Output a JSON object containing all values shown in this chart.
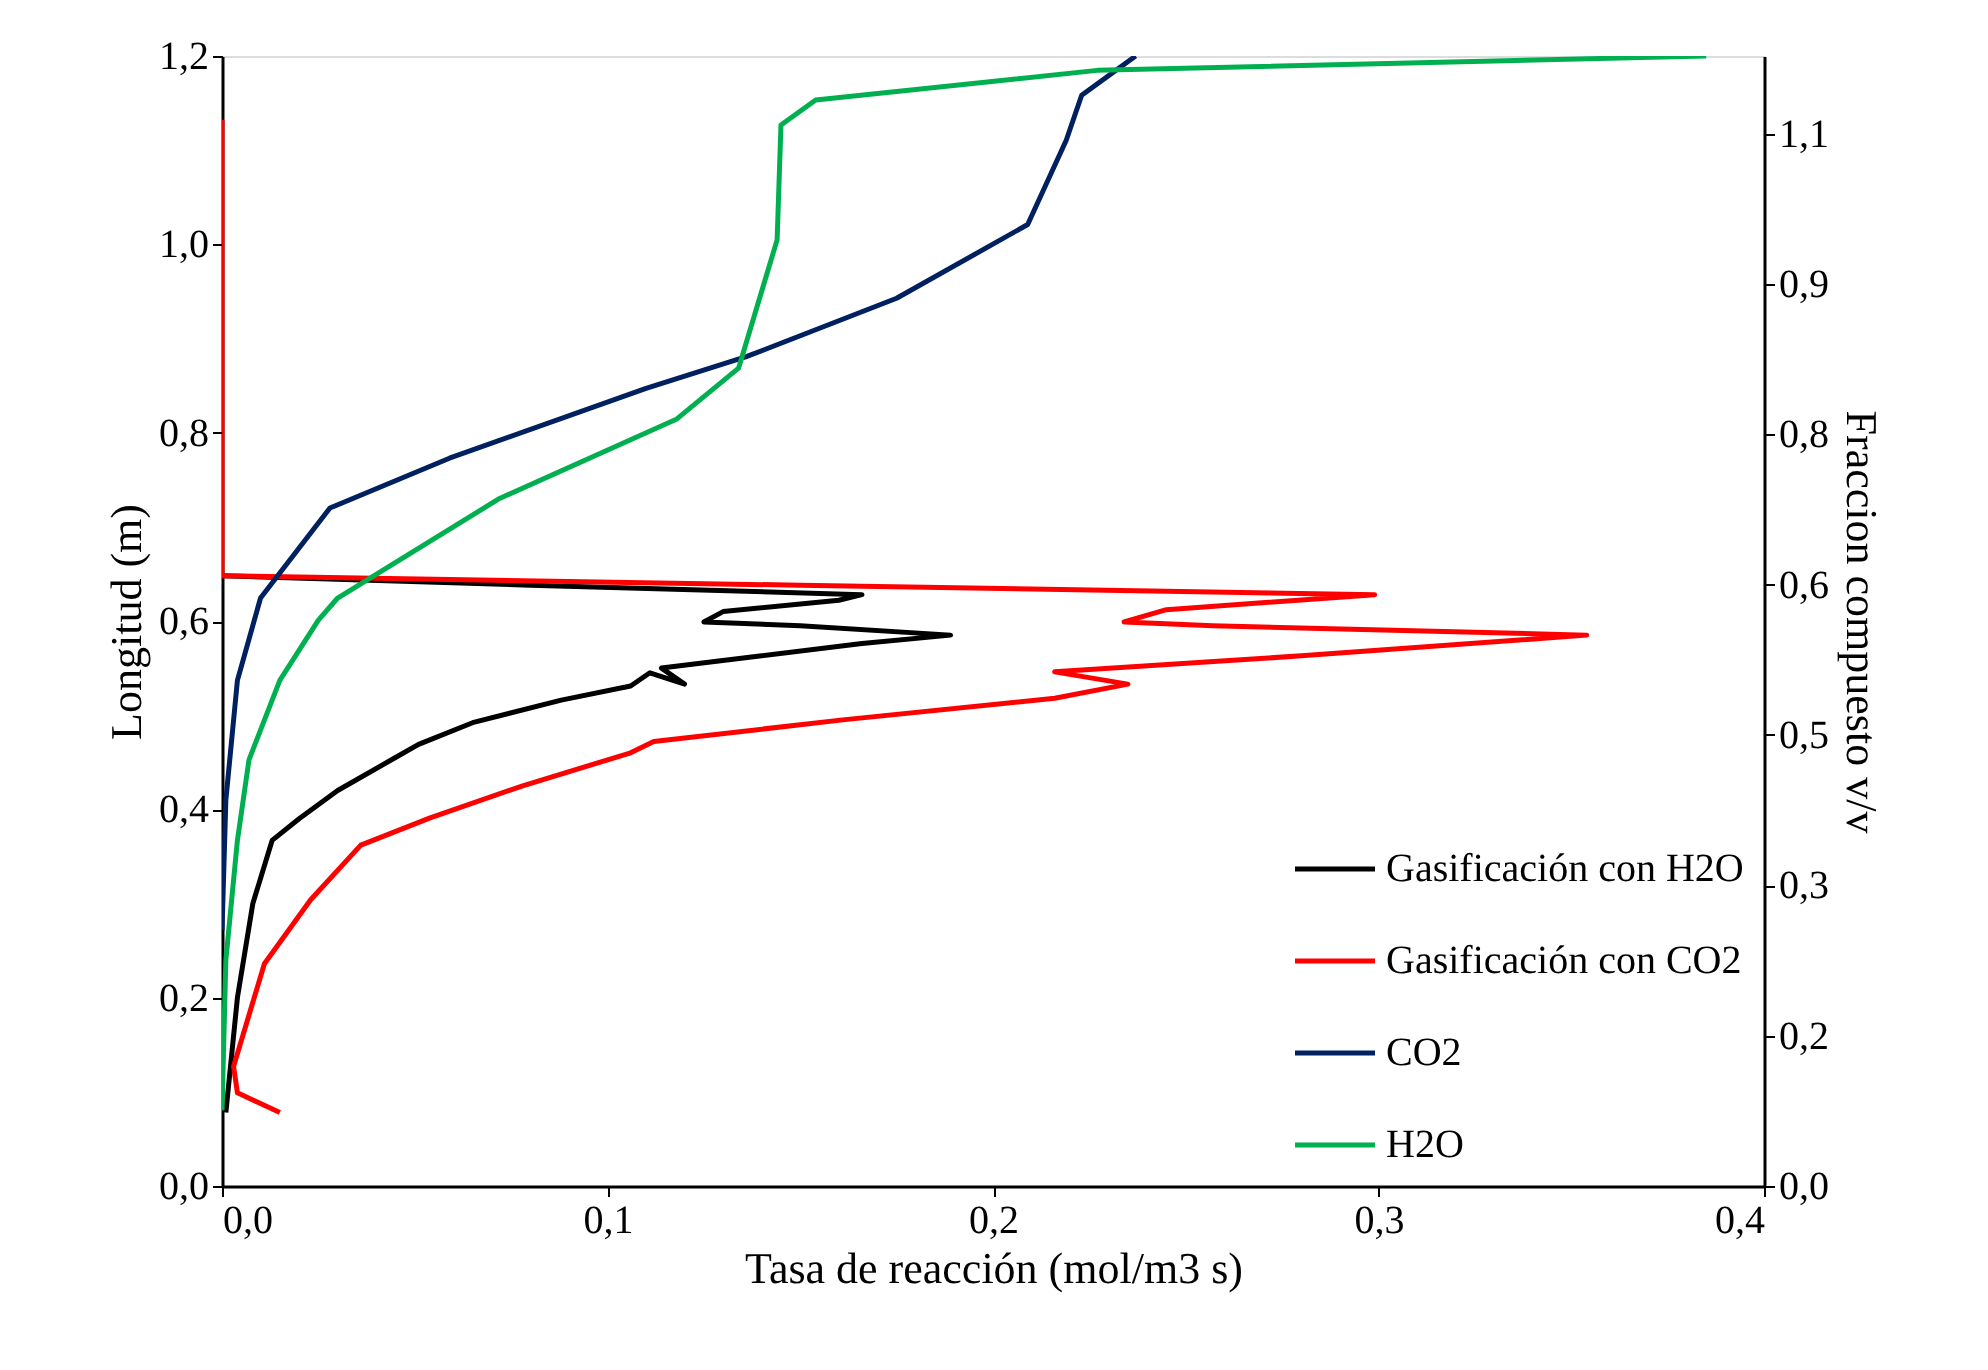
{
  "chart_data": {
    "type": "line",
    "xlabel": "Tasa de reacción (mol/m3 s)",
    "ylabel": "Longitud (m)",
    "y2label": "Fraccion compuesto v/v",
    "xlim": [
      0,
      0.4
    ],
    "xticks": [
      {
        "value": 0,
        "label": "0,0"
      },
      {
        "value": 0.1,
        "label": "0,1"
      },
      {
        "value": 0.2,
        "label": "0,2"
      },
      {
        "value": 0.3,
        "label": "0,3"
      },
      {
        "value": 0.4,
        "label": "0,4"
      }
    ],
    "ylim": [
      0,
      1.2
    ],
    "yticks": [
      {
        "value": 0,
        "label": "0,0"
      },
      {
        "value": 0.2,
        "label": "0,2"
      },
      {
        "value": 0.4,
        "label": "0,4"
      },
      {
        "value": 0.6,
        "label": "0,6"
      },
      {
        "value": 0.8,
        "label": "0,8"
      },
      {
        "value": 1.0,
        "label": "1,0"
      },
      {
        "value": 1.2,
        "label": "1,2"
      }
    ],
    "y2lim": [
      0,
      1.18
    ],
    "y2ticks": [
      {
        "value": 0,
        "label": "0,0"
      },
      {
        "value": 0.157,
        "label": "0,2"
      },
      {
        "value": 0.314,
        "label": "0,3"
      },
      {
        "value": 0.471,
        "label": "0,5"
      },
      {
        "value": 0.628,
        "label": "0,6"
      },
      {
        "value": 0.785,
        "label": "0,8"
      },
      {
        "value": 0.942,
        "label": "0,9"
      },
      {
        "value": 1.099,
        "label": "1,1"
      }
    ],
    "legend": "bottom right",
    "grid": false,
    "marker": "none",
    "line_style": "solid",
    "series": [
      {
        "name": "Gasificación con H2O",
        "color": "#000000",
        "x": [
          0.001,
          0.004,
          0.008,
          0.013,
          0.02,
          0.03,
          0.045,
          0.051,
          0.065,
          0.088,
          0.106,
          0.111,
          0.12,
          0.114,
          0.14,
          0.166,
          0.189,
          0.15,
          0.125,
          0.13,
          0.16,
          0.166,
          0.08,
          0.0
        ],
        "values": [
          0.078,
          0.2,
          0.3,
          0.367,
          0.39,
          0.42,
          0.455,
          0.469,
          0.492,
          0.516,
          0.531,
          0.545,
          0.533,
          0.55,
          0.563,
          0.576,
          0.585,
          0.595,
          0.599,
          0.61,
          0.622,
          0.628,
          0.638,
          0.648
        ]
      },
      {
        "name": "Gasificación con CO2",
        "color": "#ff0000",
        "x": [
          0.015,
          0.004,
          0.003,
          0.011,
          0.023,
          0.036,
          0.054,
          0.078,
          0.106,
          0.112,
          0.161,
          0.216,
          0.235,
          0.216,
          0.28,
          0.354,
          0.257,
          0.234,
          0.245,
          0.299,
          0.15,
          0.0,
          0.0
        ],
        "values": [
          0.078,
          0.099,
          0.127,
          0.236,
          0.304,
          0.362,
          0.391,
          0.425,
          0.46,
          0.472,
          0.495,
          0.518,
          0.533,
          0.546,
          0.563,
          0.585,
          0.595,
          0.599,
          0.612,
          0.628,
          0.638,
          0.648,
          1.132
        ]
      },
      {
        "name": "CO2",
        "color": "#002060",
        "axis": "y2",
        "x": [
          0.0,
          0.001,
          0.004,
          0.01,
          0.028,
          0.059,
          0.11,
          0.136,
          0.175,
          0.209,
          0.219,
          0.223,
          0.237
        ],
        "values": [
          0.267,
          0.403,
          0.528,
          0.614,
          0.708,
          0.76,
          0.833,
          0.866,
          0.927,
          1.004,
          1.092,
          1.139,
          1.18
        ]
      },
      {
        "name": "H2O",
        "color": "#00b050",
        "axis": "y2",
        "x": [
          0.0,
          0.001,
          0.004,
          0.007,
          0.015,
          0.025,
          0.03,
          0.072,
          0.118,
          0.134,
          0.144,
          0.145,
          0.154,
          0.227,
          0.385
        ],
        "values": [
          0.079,
          0.236,
          0.361,
          0.445,
          0.528,
          0.591,
          0.614,
          0.718,
          0.801,
          0.854,
          0.988,
          1.108,
          1.134,
          1.165,
          1.18
        ]
      }
    ]
  }
}
